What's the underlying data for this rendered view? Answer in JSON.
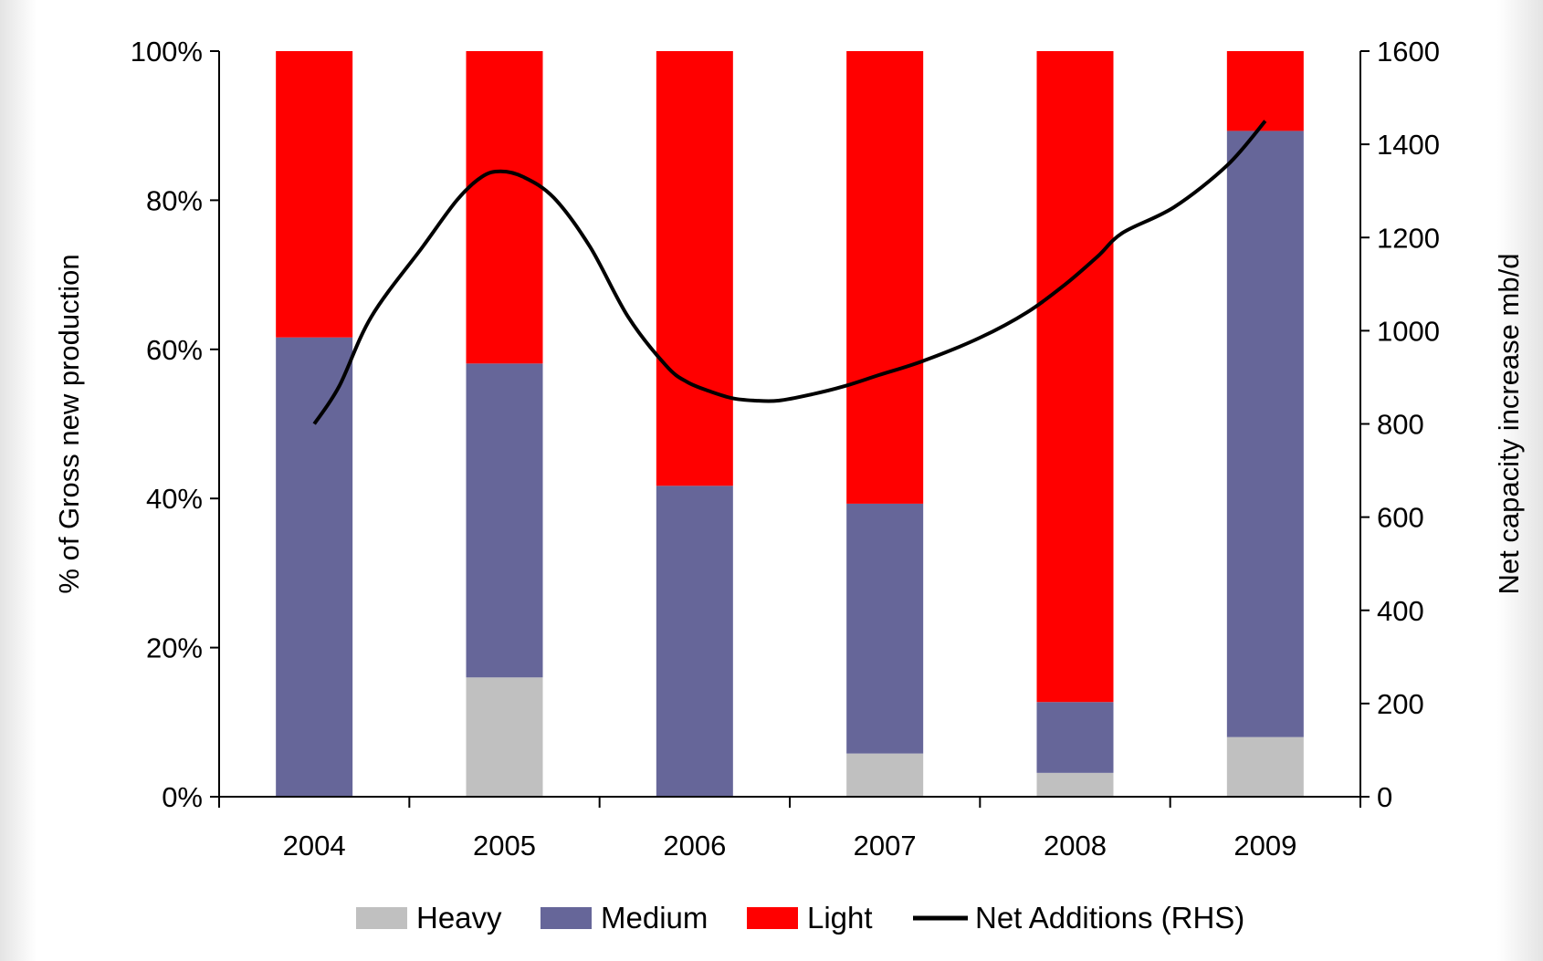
{
  "chart_data": {
    "type": "bar",
    "stacked": true,
    "categories": [
      "2004",
      "2005",
      "2006",
      "2007",
      "2008",
      "2009"
    ],
    "series": [
      {
        "name": "Heavy",
        "color": "#c0c0c0",
        "values": [
          0,
          16,
          0,
          5.8,
          3.2,
          8
        ]
      },
      {
        "name": "Medium",
        "color": "#666699",
        "values": [
          61.6,
          42.1,
          41.7,
          33.5,
          9.5,
          81.3
        ]
      },
      {
        "name": "Light",
        "color": "#ff0000",
        "values": [
          38.4,
          41.9,
          58.3,
          60.7,
          87.3,
          10.7
        ]
      }
    ],
    "line_series": {
      "name": "Net Additions (RHS)",
      "color": "#000000",
      "axis": "right",
      "points": [
        [
          2004.0,
          800
        ],
        [
          2004.13,
          880
        ],
        [
          2004.3,
          1030
        ],
        [
          2004.57,
          1180
        ],
        [
          2004.75,
          1280
        ],
        [
          2004.88,
          1330
        ],
        [
          2004.98,
          1342
        ],
        [
          2005.1,
          1330
        ],
        [
          2005.26,
          1285
        ],
        [
          2005.45,
          1180
        ],
        [
          2005.65,
          1030
        ],
        [
          2005.85,
          925
        ],
        [
          2005.96,
          890
        ],
        [
          2006.08,
          870
        ],
        [
          2006.2,
          855
        ],
        [
          2006.32,
          850
        ],
        [
          2006.44,
          850
        ],
        [
          2006.6,
          862
        ],
        [
          2006.78,
          880
        ],
        [
          2006.97,
          905
        ],
        [
          2007.2,
          935
        ],
        [
          2007.5,
          985
        ],
        [
          2007.75,
          1040
        ],
        [
          2007.95,
          1100
        ],
        [
          2008.12,
          1160
        ],
        [
          2008.25,
          1210
        ],
        [
          2008.52,
          1265
        ],
        [
          2008.8,
          1355
        ],
        [
          2009.0,
          1450
        ]
      ]
    },
    "ylabel": "% of Gross new   production",
    "ylabel_right": "Net capacity increase mb/d",
    "ylim": [
      0,
      100
    ],
    "ylim_right": [
      0,
      1600
    ],
    "yticks": [
      "0%",
      "20%",
      "40%",
      "60%",
      "80%",
      "100%"
    ],
    "yticks_right": [
      "0",
      "200",
      "400",
      "600",
      "800",
      "1000",
      "1200",
      "1400",
      "1600"
    ],
    "legend": [
      "Heavy",
      "Medium",
      "Light",
      "Net Additions (RHS)"
    ],
    "legend_position": "bottom",
    "grid": false
  }
}
